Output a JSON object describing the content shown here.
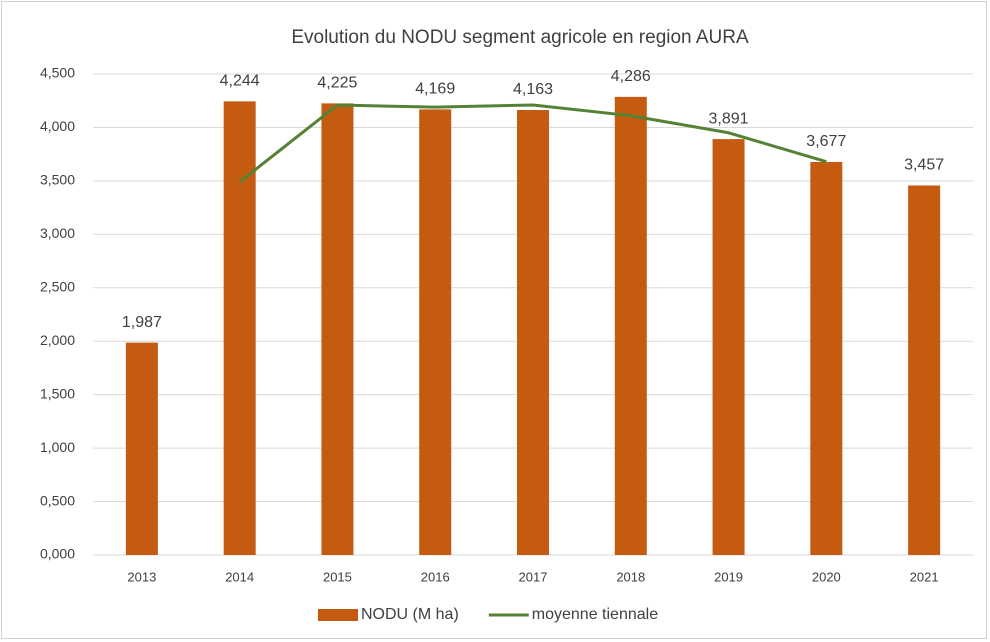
{
  "chart_data": {
    "type": "bar",
    "title": "Evolution du NODU segment agricole en region AURA",
    "categories": [
      "2013",
      "2014",
      "2015",
      "2016",
      "2017",
      "2018",
      "2019",
      "2020",
      "2021"
    ],
    "series": [
      {
        "name": "NODU (M ha)",
        "type": "bar",
        "color": "#c55a11",
        "values": [
          1.987,
          4.244,
          4.225,
          4.169,
          4.163,
          4.286,
          3.891,
          3.677,
          3.457
        ],
        "value_labels": [
          "1,987",
          "4,244",
          "4,225",
          "4,169",
          "4,163",
          "4,286",
          "3,891",
          "3,677",
          "3,457"
        ]
      },
      {
        "name": "moyenne tiennale",
        "type": "line",
        "color": "#548235",
        "values": [
          null,
          3.49,
          4.21,
          4.19,
          4.21,
          4.11,
          3.95,
          3.68,
          null
        ]
      }
    ],
    "ylim": [
      0,
      4.5
    ],
    "yticks": [
      {
        "value": 0,
        "label": "0,000"
      },
      {
        "value": 0.5,
        "label": "0,500"
      },
      {
        "value": 1,
        "label": "1,000"
      },
      {
        "value": 1.5,
        "label": "1,500"
      },
      {
        "value": 2,
        "label": "2,000"
      },
      {
        "value": 2.5,
        "label": "2,500"
      },
      {
        "value": 3,
        "label": "3,000"
      },
      {
        "value": 3.5,
        "label": "3,500"
      },
      {
        "value": 4,
        "label": "4,000"
      },
      {
        "value": 4.5,
        "label": "4,500"
      }
    ],
    "grid": true,
    "legend": "bottom"
  }
}
